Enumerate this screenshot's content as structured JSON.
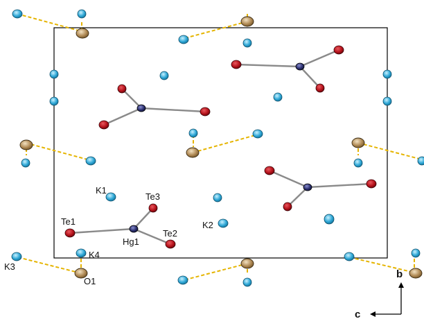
{
  "atom_labels": {
    "te1": "Te1",
    "te2": "Te2",
    "te3": "Te3",
    "hg1": "Hg1",
    "k1": "K1",
    "k2": "K2",
    "k3": "K3",
    "k4": "K4",
    "o1": "O1"
  },
  "axes": {
    "b": "b",
    "c": "c"
  },
  "colors": {
    "tellurium": "#b5121b",
    "mercury": "#2b2f6e",
    "potassium": "#2ea7d6",
    "oxygen": "#b08a55",
    "hydrogen_bond": "#e5b400",
    "bond": "#8a8a8a",
    "cell": "#000000"
  }
}
